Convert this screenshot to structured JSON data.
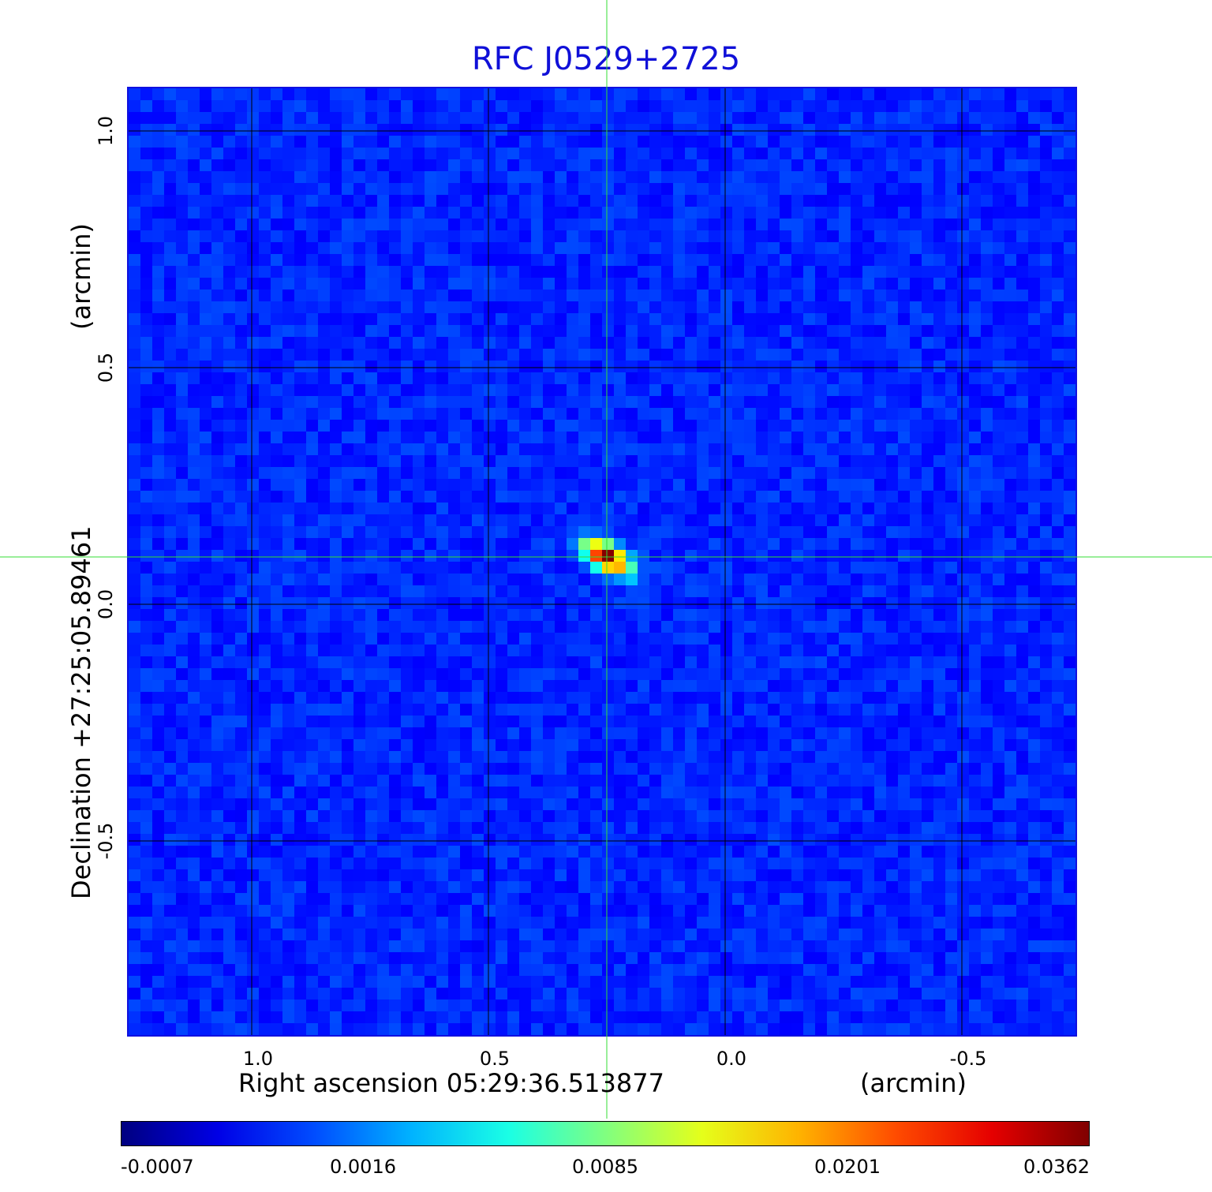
{
  "chart_data": {
    "type": "heatmap",
    "title": "RFC J0529+2725",
    "xlabel": "Right ascension  05:29:36.513877",
    "x_unit": "(arcmin)",
    "ylabel": "Declination  +27:25:05.89461",
    "y_unit": "(arcmin)",
    "xlim": [
      1.26,
      -0.74
    ],
    "ylim": [
      -0.91,
      1.09
    ],
    "x_ticks": [
      1.0,
      0.5,
      0.0,
      -0.5
    ],
    "x_tick_labels": [
      "1.0",
      "0.5",
      "0.0",
      "-0.5"
    ],
    "y_ticks": [
      1.0,
      0.5,
      0.0,
      -0.5
    ],
    "y_tick_labels": [
      "1.0",
      "0.5",
      "0.0",
      "-0.5"
    ],
    "grid": true,
    "crosshair": {
      "x": 0.25,
      "y": 0.1
    },
    "source_peak": {
      "x": 0.25,
      "y": 0.1,
      "value": 0.0362
    },
    "colorscale": "jet",
    "colorbar_ticks": [
      "-0.0007",
      "0.0016",
      "0.0085",
      "0.0201",
      "0.0362"
    ],
    "colors": {
      "title": "#1010d8",
      "frame": "#1010e0",
      "crosshair": "#33dd33",
      "grid": "#000000"
    }
  }
}
